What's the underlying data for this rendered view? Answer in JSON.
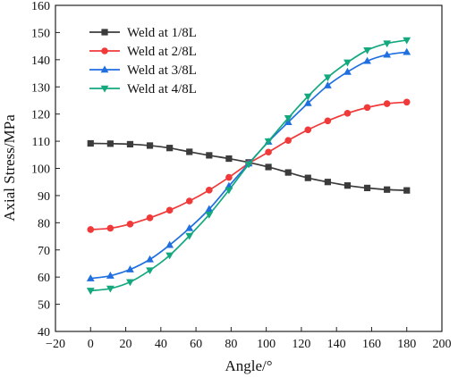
{
  "chart_data": {
    "type": "line",
    "title": "",
    "xlabel": "Angle/°",
    "ylabel": "Axial Stress/MPa",
    "xlim": [
      -20,
      200
    ],
    "ylim": [
      40,
      160
    ],
    "xticks": [
      -20,
      0,
      20,
      40,
      60,
      80,
      100,
      120,
      140,
      160,
      180,
      200
    ],
    "yticks": [
      40,
      50,
      60,
      70,
      80,
      90,
      100,
      110,
      120,
      130,
      140,
      150,
      160
    ],
    "grid": false,
    "legend_position": "top-left",
    "x": [
      0,
      11.25,
      22.5,
      33.75,
      45,
      56.25,
      67.5,
      78.75,
      90,
      101.25,
      112.5,
      123.75,
      135,
      146.25,
      157.5,
      168.75,
      180
    ],
    "series": [
      {
        "name": "Weld at 1/8L",
        "color": "#3b3b3b",
        "marker": "square",
        "values": [
          109.2,
          109.1,
          108.9,
          108.4,
          107.5,
          106.1,
          104.8,
          103.6,
          102.2,
          100.5,
          98.5,
          96.5,
          95.0,
          93.7,
          92.8,
          92.2,
          91.9
        ]
      },
      {
        "name": "Weld at 2/8L",
        "color": "#f03a3a",
        "marker": "circle",
        "values": [
          77.5,
          78.0,
          79.5,
          81.8,
          84.6,
          88.0,
          92.0,
          96.7,
          101.8,
          106.0,
          110.3,
          114.2,
          117.5,
          120.3,
          122.4,
          123.8,
          124.4
        ]
      },
      {
        "name": "Weld at 3/8L",
        "color": "#1f6fe0",
        "marker": "triangle-up",
        "values": [
          59.5,
          60.5,
          62.8,
          66.5,
          71.8,
          78.0,
          85.0,
          93.5,
          101.8,
          109.8,
          117.0,
          124.0,
          130.5,
          135.5,
          139.5,
          141.8,
          142.8
        ]
      },
      {
        "name": "Weld at 4/8L",
        "color": "#13a87e",
        "marker": "triangle-down",
        "values": [
          55.0,
          55.8,
          58.2,
          62.5,
          68.0,
          75.2,
          83.0,
          92.0,
          101.5,
          110.0,
          118.5,
          126.5,
          133.5,
          139.0,
          143.5,
          146.0,
          147.2
        ]
      }
    ]
  }
}
